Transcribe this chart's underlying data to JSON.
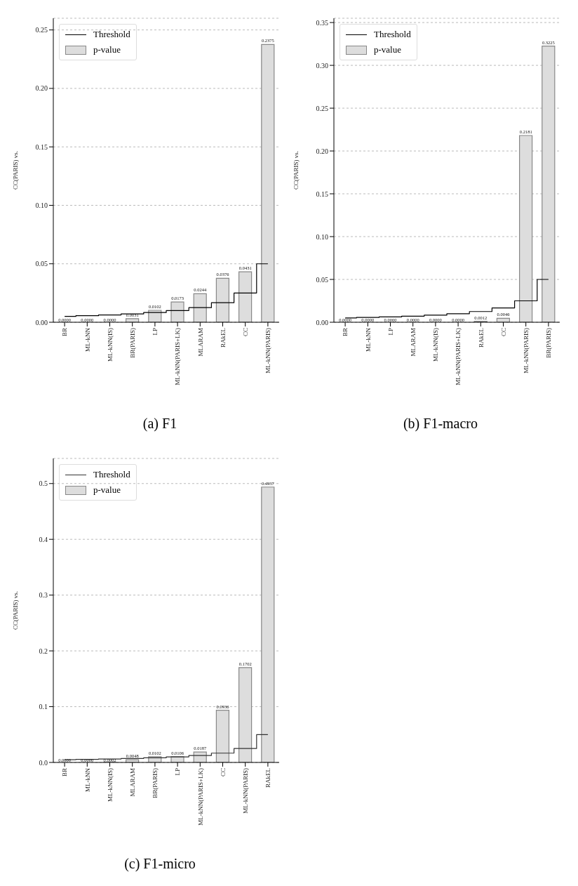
{
  "chart_data": [
    {
      "type": "bar",
      "title": "(a) F1",
      "ylabel": "CC(PARIS) vs.",
      "categories": [
        "BR",
        "ML-kNN",
        "ML-kNN(IS)",
        "BR(PARIS)",
        "LP",
        "ML-kNN(PARIS+LK)",
        "MLARAM",
        "RAkEL",
        "CC",
        "ML-kNN(PARIS)"
      ],
      "series": [
        {
          "name": "p-value",
          "color": "#dddddd",
          "values": [
            0.0,
            0.0,
            0.0,
            0.0031,
            0.0102,
            0.0173,
            0.0244,
            0.0376,
            0.0431,
            0.2375
          ],
          "value_labels": [
            "0.0000",
            "0.0000",
            "0.0000",
            "0.0031",
            "0.0102",
            "0.0173",
            "0.0244",
            "0.0376",
            "0.0431",
            "0.2375"
          ]
        },
        {
          "name": "Threshold",
          "type": "step",
          "color": "#000000",
          "values": [
            0.005,
            0.0056,
            0.0062,
            0.0071,
            0.0083,
            0.01,
            0.0125,
            0.0167,
            0.025,
            0.05
          ]
        }
      ],
      "ylim": [
        0,
        0.26
      ],
      "yticks": [
        {
          "value": 0,
          "label": "0.00"
        },
        {
          "value": 0.05,
          "label": "0.05"
        },
        {
          "value": 0.1,
          "label": "0.10"
        },
        {
          "value": 0.15,
          "label": "0.15"
        },
        {
          "value": 0.2,
          "label": "0.20"
        },
        {
          "value": 0.25,
          "label": "0.25"
        }
      ],
      "grid": "y",
      "legend": "top left"
    },
    {
      "type": "bar",
      "title": "(b) F1-macro",
      "ylabel": "CC(PARIS) vs.",
      "categories": [
        "BR",
        "ML-kNN",
        "LP",
        "MLARAM",
        "ML-kNN(IS)",
        "ML-kNN(PARIS+LK)",
        "RAkEL",
        "CC",
        "ML-kNN(PARIS)",
        "BR(PARIS)"
      ],
      "series": [
        {
          "name": "p-value",
          "color": "#dddddd",
          "values": [
            0.0,
            0.0,
            0.0,
            0.0,
            0.0,
            0.0,
            0.0012,
            0.0046,
            0.2181,
            0.3225
          ],
          "value_labels": [
            "0.0000",
            "0.0000",
            "0.0000",
            "0.0000",
            "0.0000",
            "0.0000",
            "0.0012",
            "0.0046",
            "0.2181",
            "0.3225"
          ]
        },
        {
          "name": "Threshold",
          "type": "step",
          "color": "#000000",
          "values": [
            0.005,
            0.0056,
            0.0062,
            0.0071,
            0.0083,
            0.01,
            0.0125,
            0.0167,
            0.025,
            0.05
          ]
        }
      ],
      "ylim": [
        0,
        0.355
      ],
      "yticks": [
        {
          "value": 0,
          "label": "0.00"
        },
        {
          "value": 0.05,
          "label": "0.05"
        },
        {
          "value": 0.1,
          "label": "0.10"
        },
        {
          "value": 0.15,
          "label": "0.15"
        },
        {
          "value": 0.2,
          "label": "0.20"
        },
        {
          "value": 0.25,
          "label": "0.25"
        },
        {
          "value": 0.3,
          "label": "0.30"
        },
        {
          "value": 0.35,
          "label": "0.35"
        }
      ],
      "grid": "y",
      "legend": "top left"
    },
    {
      "type": "bar",
      "title": "(c) F1-micro",
      "ylabel": "CC(PARIS) vs.",
      "categories": [
        "BR",
        "ML-kNN",
        "ML-kNN(IS)",
        "MLARAM",
        "BR(PARIS)",
        "LP",
        "ML-kNN(PARIS+LK)",
        "CC",
        "ML-kNN(PARIS)",
        "RAkEL"
      ],
      "series": [
        {
          "name": "p-value",
          "color": "#dddddd",
          "values": [
            0.0,
            0.0,
            0.0002,
            0.0048,
            0.0102,
            0.0106,
            0.0187,
            0.0936,
            0.1702,
            0.4937
          ],
          "value_labels": [
            "0.0000",
            "0.0000",
            "0.0002",
            "0.0048",
            "0.0102",
            "0.0106",
            "0.0187",
            "0.0936",
            "0.1702",
            "0.4937"
          ]
        },
        {
          "name": "Threshold",
          "type": "step",
          "color": "#333333",
          "values": [
            0.005,
            0.0056,
            0.0062,
            0.0071,
            0.0083,
            0.01,
            0.0125,
            0.0167,
            0.025,
            0.05
          ]
        }
      ],
      "ylim": [
        0,
        0.545
      ],
      "yticks": [
        {
          "value": 0,
          "label": "0.0"
        },
        {
          "value": 0.1,
          "label": "0.1"
        },
        {
          "value": 0.2,
          "label": "0.2"
        },
        {
          "value": 0.3,
          "label": "0.3"
        },
        {
          "value": 0.4,
          "label": "0.4"
        },
        {
          "value": 0.5,
          "label": "0.5"
        }
      ],
      "grid": "y",
      "legend": "top left"
    }
  ]
}
